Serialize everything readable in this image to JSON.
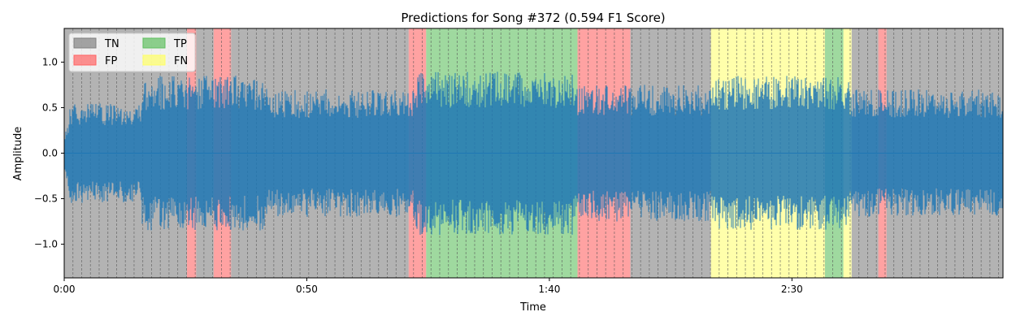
{
  "chart_data": {
    "type": "area",
    "title": "Predictions for Song #372 (0.594 F1 Score)",
    "xlabel": "Time",
    "ylabel": "Amplitude",
    "xlim": [
      0,
      193.5
    ],
    "ylim": [
      -1.37,
      1.37
    ],
    "x_ticks": [
      {
        "value": 0,
        "label": "0:00"
      },
      {
        "value": 50,
        "label": "0:50"
      },
      {
        "value": 100,
        "label": "1:40"
      },
      {
        "value": 150,
        "label": "2:30"
      }
    ],
    "y_ticks": [
      {
        "value": 1.0,
        "label": "1.0"
      },
      {
        "value": 0.5,
        "label": "0.5"
      },
      {
        "value": 0.0,
        "label": "0.0"
      },
      {
        "value": -0.5,
        "label": "−0.5"
      },
      {
        "value": -1.0,
        "label": "−1.0"
      }
    ],
    "legend": {
      "placement": "top-left",
      "columns": 2,
      "entries": [
        {
          "key": "TN",
          "label": "TN",
          "color": "#808080"
        },
        {
          "key": "FP",
          "label": "FP",
          "color": "#ff6464"
        },
        {
          "key": "TP",
          "label": "TP",
          "color": "#5fbf5f"
        },
        {
          "key": "FN",
          "label": "FN",
          "color": "#ffff66"
        }
      ]
    },
    "waveform_color": "#1f77b4",
    "segments": [
      {
        "start": 0,
        "end": 25.3,
        "label": "TN"
      },
      {
        "start": 25.3,
        "end": 27.2,
        "label": "FP"
      },
      {
        "start": 27.2,
        "end": 30.8,
        "label": "TN"
      },
      {
        "start": 30.8,
        "end": 34.4,
        "label": "FP"
      },
      {
        "start": 34.4,
        "end": 71.0,
        "label": "TN"
      },
      {
        "start": 71.0,
        "end": 74.6,
        "label": "FP"
      },
      {
        "start": 74.6,
        "end": 105.8,
        "label": "TP"
      },
      {
        "start": 105.8,
        "end": 116.7,
        "label": "FP"
      },
      {
        "start": 116.7,
        "end": 133.3,
        "label": "TN"
      },
      {
        "start": 133.3,
        "end": 156.8,
        "label": "FN"
      },
      {
        "start": 156.8,
        "end": 160.6,
        "label": "TP"
      },
      {
        "start": 160.6,
        "end": 162.3,
        "label": "FN"
      },
      {
        "start": 162.3,
        "end": 167.8,
        "label": "TN"
      },
      {
        "start": 167.8,
        "end": 169.5,
        "label": "FP"
      },
      {
        "start": 169.5,
        "end": 193.5,
        "label": "TN"
      }
    ],
    "beat_interval": 1.8
  }
}
